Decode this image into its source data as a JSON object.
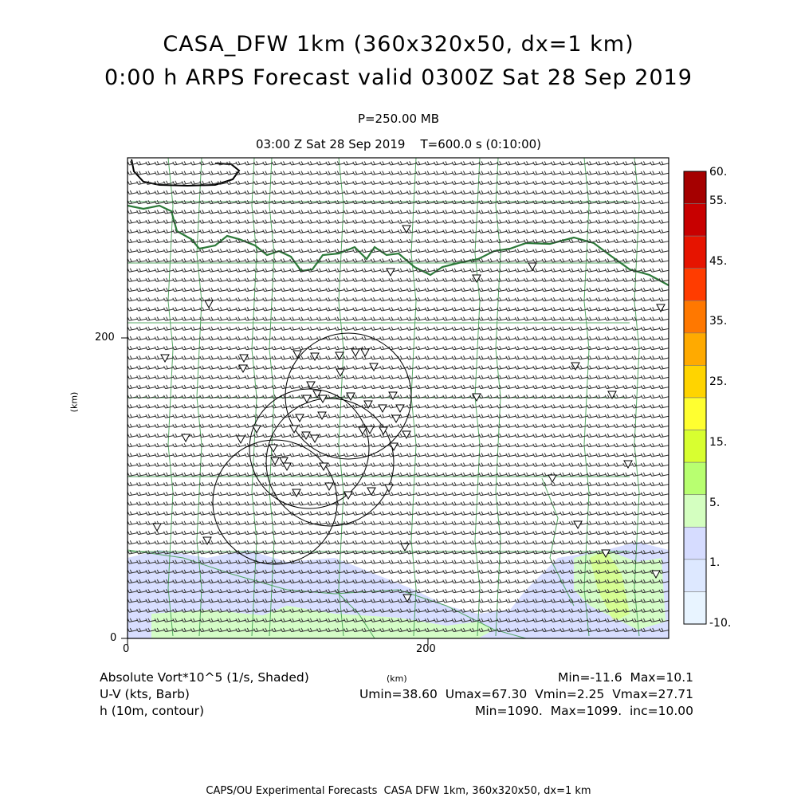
{
  "header": {
    "title_line1": "CASA_DFW 1km (360x320x50, dx=1 km)",
    "title_line2": "0:00 h ARPS Forecast valid 0300Z Sat 28 Sep 2019",
    "level": "P=250.00 MB",
    "time_line": "03:00 Z Sat 28 Sep 2019    T=600.0 s (0:10:00)"
  },
  "axes": {
    "x_ticks": [
      "0",
      "200"
    ],
    "y_ticks": [
      "0",
      "200"
    ],
    "x_unit": "(km)",
    "y_unit": "(km)"
  },
  "colorbar": {
    "labels": [
      "60.",
      "55.",
      "45.",
      "35.",
      "25.",
      "15.",
      "5.",
      "1.",
      "-10."
    ],
    "colors": [
      "#a50000",
      "#c80000",
      "#e61400",
      "#ff3c00",
      "#ff7800",
      "#ffaa00",
      "#ffd400",
      "#ffff30",
      "#d8ff30",
      "#b8ff70",
      "#d4ffc0",
      "#d6dcff",
      "#dde8ff",
      "#e8f4ff"
    ]
  },
  "legend": {
    "field1": "Absolute Vort*10^5 (1/s, Shaded)",
    "field2": "U-V (kts, Barb)",
    "field3": "h (10m, contour)",
    "stats1": "Min=-11.6  Max=10.1",
    "stats2": "Umin=38.60  Umax=67.30  Vmin=2.25  Vmax=27.71",
    "stats3": "Min=1090.  Max=1099.  inc=10.00"
  },
  "footer": "CAPS/OU Experimental Forecasts  CASA DFW 1km, 360x320x50, dx=1 km"
}
